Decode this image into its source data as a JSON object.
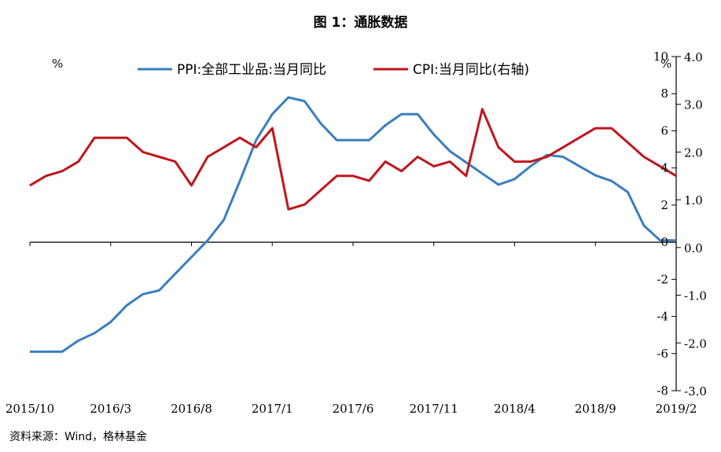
{
  "title": "图 1：通胀数据",
  "source": "资料来源：Wind，格林基金",
  "chart_data": {
    "type": "line",
    "left_unit": "%",
    "right_unit": "%",
    "x_tick_labels": [
      "2015/10",
      "2016/3",
      "2016/8",
      "2017/1",
      "2017/6",
      "2017/11",
      "2018/4",
      "2018/9",
      "2019/2"
    ],
    "left_axis": {
      "ylim": [
        -8,
        10
      ],
      "ticks": [
        10,
        8,
        6,
        4,
        2,
        0,
        -2,
        -4,
        -6,
        -8
      ]
    },
    "right_axis": {
      "ylim": [
        -3.0,
        4.0
      ],
      "ticks": [
        "4.0",
        "3.0",
        "2.0",
        "1.0",
        "0.0",
        "-1.0",
        "-2.0",
        "-3.0"
      ]
    },
    "x": [
      "2015/10",
      "2015/11",
      "2015/12",
      "2016/1",
      "2016/2",
      "2016/3",
      "2016/4",
      "2016/5",
      "2016/6",
      "2016/7",
      "2016/8",
      "2016/9",
      "2016/10",
      "2016/11",
      "2016/12",
      "2017/1",
      "2017/2",
      "2017/3",
      "2017/4",
      "2017/5",
      "2017/6",
      "2017/7",
      "2017/8",
      "2017/9",
      "2017/10",
      "2017/11",
      "2017/12",
      "2018/1",
      "2018/2",
      "2018/3",
      "2018/4",
      "2018/5",
      "2018/6",
      "2018/7",
      "2018/8",
      "2018/9",
      "2018/10",
      "2018/11",
      "2018/12",
      "2019/1",
      "2019/2"
    ],
    "series": [
      {
        "name": "PPI:全部工业品:当月同比",
        "axis": "left",
        "color": "#3a7ebf",
        "values": [
          -5.9,
          -5.9,
          -5.9,
          -5.3,
          -4.9,
          -4.3,
          -3.4,
          -2.8,
          -2.6,
          -1.7,
          -0.8,
          0.1,
          1.2,
          3.3,
          5.5,
          6.9,
          7.8,
          7.6,
          6.4,
          5.5,
          5.5,
          5.5,
          6.3,
          6.9,
          6.9,
          5.8,
          4.9,
          4.3,
          3.7,
          3.1,
          3.4,
          4.1,
          4.7,
          4.6,
          4.1,
          3.6,
          3.3,
          2.7,
          0.9,
          0.1,
          0.1
        ]
      },
      {
        "name": "CPI:当月同比(右轴)",
        "axis": "right",
        "color": "#c0161c",
        "values": [
          1.3,
          1.5,
          1.6,
          1.8,
          2.3,
          2.3,
          2.3,
          2.0,
          1.9,
          1.8,
          1.3,
          1.9,
          2.1,
          2.3,
          2.1,
          2.5,
          0.8,
          0.9,
          1.2,
          1.5,
          1.5,
          1.4,
          1.8,
          1.6,
          1.9,
          1.7,
          1.8,
          1.5,
          2.9,
          2.1,
          1.8,
          1.8,
          1.9,
          2.1,
          2.3,
          2.5,
          2.5,
          2.2,
          1.9,
          1.7,
          1.5
        ]
      }
    ]
  }
}
